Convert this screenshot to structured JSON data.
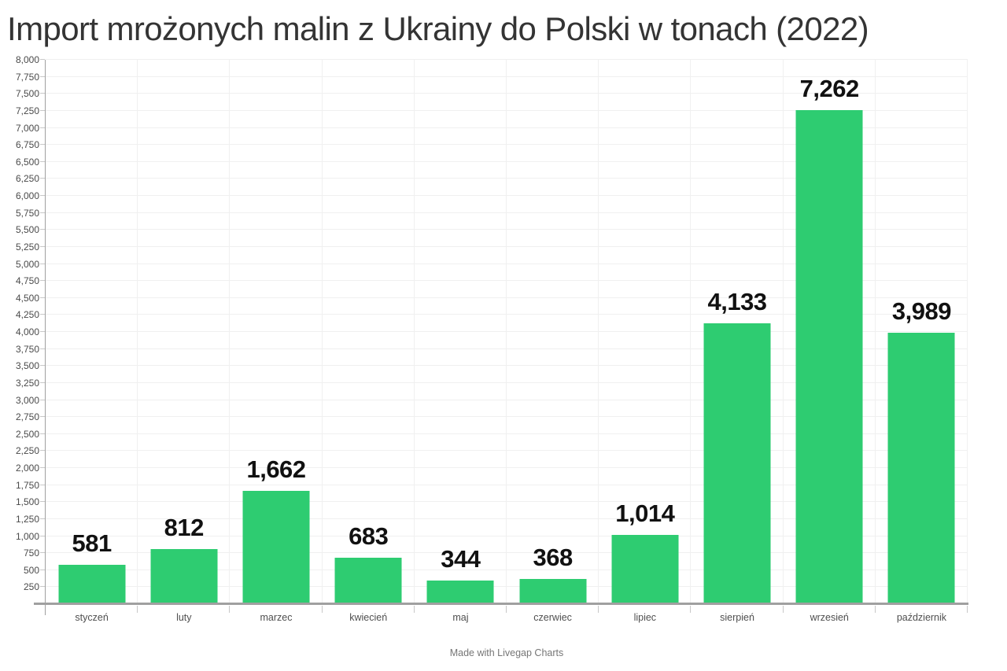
{
  "title": "Import mrożonych malin z Ukrainy do Polski w tonach (2022)",
  "footer": {
    "credit": "Made with Livegap Charts"
  },
  "colors": {
    "background": "#ffffff",
    "bar": "#2ecc71",
    "grid": "#f0f0f0",
    "axis_line": "#a0a0a0",
    "tick": "#c8c8c8",
    "title_text": "#343434",
    "y_label": "#4a4a4a",
    "x_label": "#4f4f4f",
    "value_label": "#111111",
    "footer_text": "#767676"
  },
  "chart_data": {
    "type": "bar",
    "title": "Import mrożonych malin z Ukrainy do Polski w tonach (2022)",
    "categories": [
      "styczeń",
      "luty",
      "marzec",
      "kwiecień",
      "maj",
      "czerwiec",
      "lipiec",
      "sierpień",
      "wrzesień",
      "październik"
    ],
    "values": [
      581,
      812,
      1662,
      683,
      344,
      368,
      1014,
      4133,
      7262,
      3989
    ],
    "value_labels": [
      "581",
      "812",
      "1,662",
      "683",
      "344",
      "368",
      "1,014",
      "4,133",
      "7,262",
      "3,989"
    ],
    "xlabel": "",
    "ylabel": "",
    "ylim": [
      0,
      8000
    ],
    "ytick_step": 250,
    "ytick_format": "thousands-comma",
    "grid": true,
    "legend": false,
    "value_labels_shown": true,
    "credit": "Made with Livegap Charts"
  }
}
